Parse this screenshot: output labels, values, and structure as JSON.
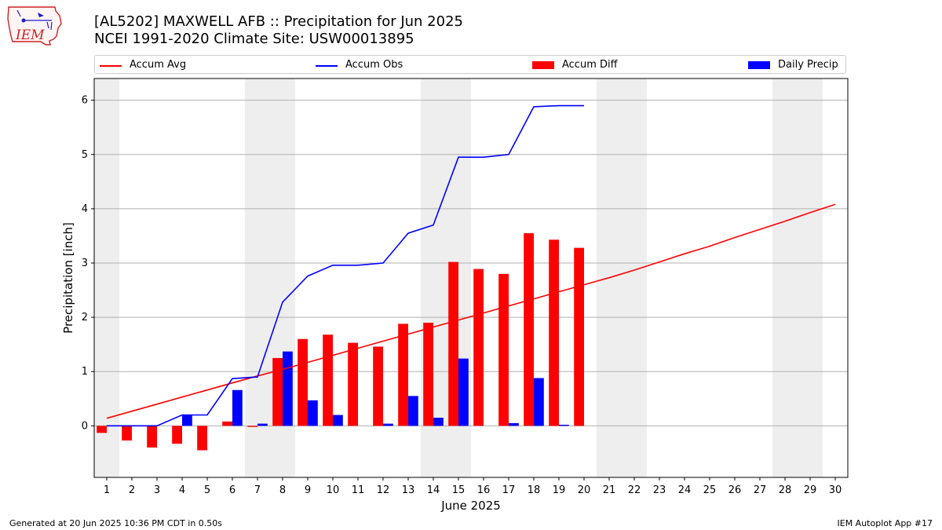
{
  "header": {
    "title_line1": "[AL5202] MAXWELL AFB :: Precipitation for Jun 2025",
    "title_line2": "NCEI 1991-2020 Climate Site: USW00013895",
    "logo_text": "IEM"
  },
  "legend": {
    "items": [
      {
        "label": "Accum Avg",
        "color": "#ff0000",
        "kind": "line"
      },
      {
        "label": "Accum Obs",
        "color": "#0000ff",
        "kind": "line"
      },
      {
        "label": "Accum Diff",
        "color": "#ff0000",
        "kind": "box"
      },
      {
        "label": "Daily Precip",
        "color": "#0000ff",
        "kind": "box"
      }
    ]
  },
  "footer": {
    "left": "Generated at 20 Jun 2025 10:36 PM CDT in 0.50s",
    "right": "IEM Autoplot App #17"
  },
  "chart_data": {
    "type": "bar",
    "xlabel": "June 2025",
    "ylabel": "Precipitation [inch]",
    "ylim": [
      -0.95,
      6.4
    ],
    "yticks": [
      0,
      1,
      2,
      3,
      4,
      5,
      6
    ],
    "days": [
      1,
      2,
      3,
      4,
      5,
      6,
      7,
      8,
      9,
      10,
      11,
      12,
      13,
      14,
      15,
      16,
      17,
      18,
      19,
      20,
      21,
      22,
      23,
      24,
      25,
      26,
      27,
      28,
      29,
      30
    ],
    "weekend_days": [
      1,
      7,
      8,
      14,
      15,
      21,
      22,
      28,
      29
    ],
    "grid": "horizontal",
    "series": [
      {
        "name": "Accum Avg",
        "type": "line",
        "color": "#ff0000",
        "values": [
          0.14,
          0.27,
          0.4,
          0.53,
          0.66,
          0.79,
          0.92,
          1.04,
          1.17,
          1.3,
          1.43,
          1.56,
          1.69,
          1.82,
          1.95,
          2.08,
          2.21,
          2.34,
          2.47,
          2.6,
          2.73,
          2.87,
          3.02,
          3.17,
          3.31,
          3.47,
          3.62,
          3.77,
          3.93,
          4.08
        ]
      },
      {
        "name": "Accum Obs",
        "type": "line",
        "color": "#0000ff",
        "values": [
          0.0,
          0.0,
          0.0,
          0.2,
          0.2,
          0.87,
          0.9,
          2.28,
          2.76,
          2.96,
          2.96,
          3.0,
          3.55,
          3.7,
          4.95,
          4.95,
          5.0,
          5.88,
          5.9,
          5.9
        ]
      },
      {
        "name": "Accum Diff",
        "type": "bar",
        "color": "#ff0000",
        "values": [
          -0.13,
          -0.27,
          -0.4,
          -0.33,
          -0.45,
          0.08,
          -0.02,
          1.25,
          1.6,
          1.68,
          1.53,
          1.46,
          1.88,
          1.9,
          3.02,
          2.89,
          2.8,
          3.55,
          3.43,
          3.28
        ]
      },
      {
        "name": "Daily Precip",
        "type": "bar",
        "color": "#0000ff",
        "values": [
          0.0,
          0.0,
          0.0,
          0.2,
          0.0,
          0.66,
          0.04,
          1.37,
          0.47,
          0.2,
          0.0,
          0.04,
          0.55,
          0.15,
          1.24,
          0.0,
          0.05,
          0.88,
          0.02,
          0.0
        ]
      }
    ]
  }
}
